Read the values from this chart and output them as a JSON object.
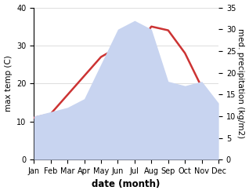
{
  "months": [
    "Jan",
    "Feb",
    "Mar",
    "Apr",
    "May",
    "Jun",
    "Jul",
    "Aug",
    "Sep",
    "Oct",
    "Nov",
    "Dec"
  ],
  "temperature": [
    11,
    12,
    17,
    22,
    27,
    29.5,
    29,
    35,
    34,
    28,
    19,
    14
  ],
  "precipitation": [
    10,
    11,
    12,
    14,
    22,
    30,
    32,
    30,
    18,
    17,
    18,
    13
  ],
  "temp_color": "#cc3333",
  "precip_fill_color": "#c8d4f0",
  "temp_ylim": [
    0,
    40
  ],
  "precip_ylim": [
    0,
    35
  ],
  "xlabel": "date (month)",
  "ylabel_left": "max temp (C)",
  "ylabel_right": "med. precipitation (kg/m2)",
  "bg_color": "#ffffff",
  "label_fontsize": 7.5,
  "tick_fontsize": 7.0
}
